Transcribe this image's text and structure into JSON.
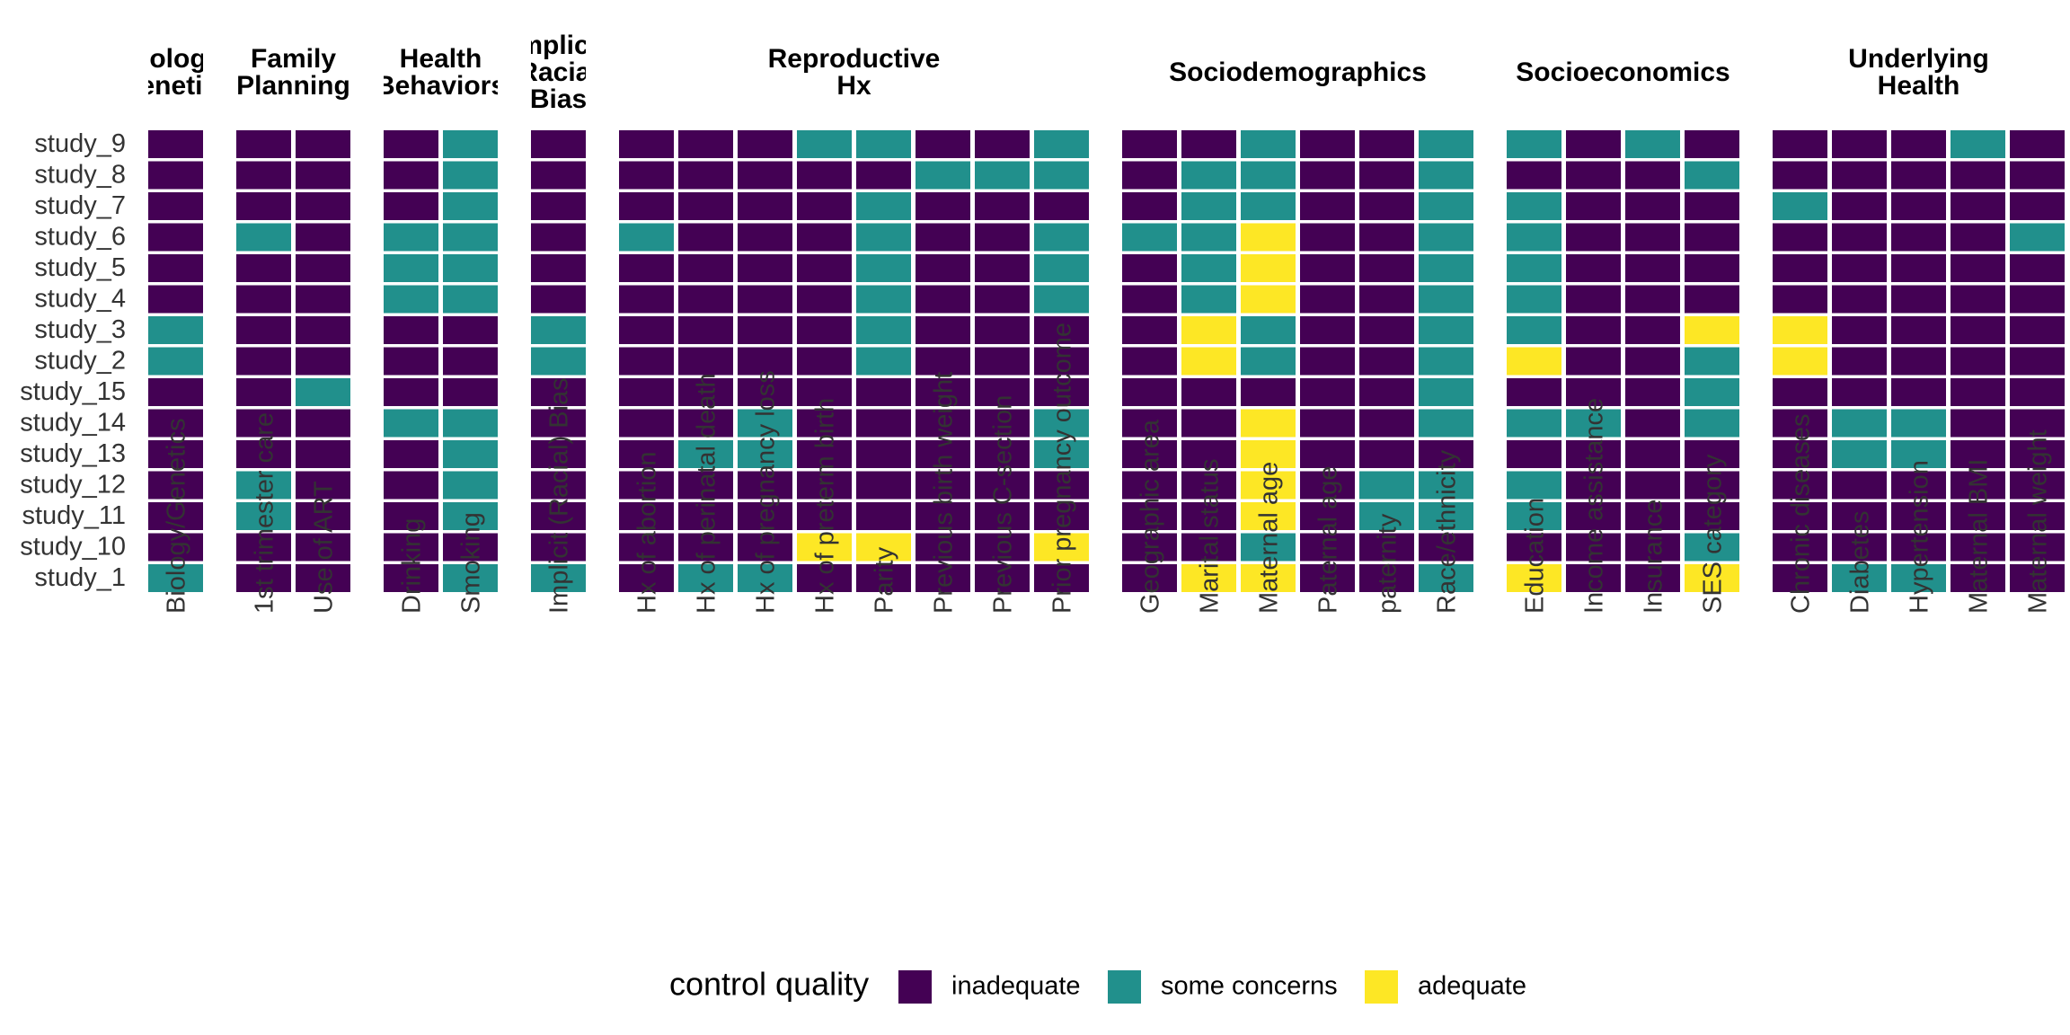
{
  "chart_data": {
    "type": "heatmap",
    "legend": {
      "title": "control quality",
      "position": "bottom",
      "levels": [
        {
          "label": "inadequate",
          "color": "#440154"
        },
        {
          "label": "some concerns",
          "color": "#21908C"
        },
        {
          "label": "adequate",
          "color": "#FDE725"
        }
      ]
    },
    "rows": [
      "study_9",
      "study_8",
      "study_7",
      "study_6",
      "study_5",
      "study_4",
      "study_3",
      "study_2",
      "study_15",
      "study_14",
      "study_13",
      "study_12",
      "study_11",
      "study_10",
      "study_1"
    ],
    "facets": [
      {
        "title": [
          "Biology/",
          "Genetics"
        ],
        "columns": [
          {
            "label": "Biology/Genetics",
            "values": [
              0,
              0,
              0,
              0,
              0,
              0,
              1,
              1,
              0,
              0,
              0,
              0,
              0,
              0,
              1
            ]
          }
        ]
      },
      {
        "title": [
          "Family",
          "Planning"
        ],
        "columns": [
          {
            "label": "1st trimester care",
            "values": [
              0,
              0,
              0,
              1,
              0,
              0,
              0,
              0,
              0,
              0,
              0,
              1,
              1,
              0,
              0
            ]
          },
          {
            "label": "Use of ART",
            "values": [
              0,
              0,
              0,
              0,
              0,
              0,
              0,
              0,
              1,
              0,
              0,
              0,
              0,
              0,
              0
            ]
          }
        ]
      },
      {
        "title": [
          "Health",
          "Behaviors"
        ],
        "columns": [
          {
            "label": "Drinking",
            "values": [
              0,
              0,
              0,
              1,
              1,
              1,
              0,
              0,
              0,
              1,
              0,
              0,
              0,
              0,
              0
            ]
          },
          {
            "label": "Smoking",
            "values": [
              1,
              1,
              1,
              1,
              1,
              1,
              0,
              0,
              0,
              1,
              1,
              1,
              1,
              0,
              1
            ]
          }
        ]
      },
      {
        "title": [
          "Implicit",
          "(Racial)",
          "Bias"
        ],
        "columns": [
          {
            "label": "Implicit (Racial) Bias",
            "values": [
              0,
              0,
              0,
              0,
              0,
              0,
              1,
              1,
              0,
              0,
              0,
              0,
              0,
              0,
              1
            ]
          }
        ]
      },
      {
        "title": [
          "Reproductive",
          "Hx"
        ],
        "columns": [
          {
            "label": "Hx of abortion",
            "values": [
              0,
              0,
              0,
              1,
              0,
              0,
              0,
              0,
              0,
              0,
              0,
              0,
              0,
              0,
              0
            ]
          },
          {
            "label": "Hx of perinatal death",
            "values": [
              0,
              0,
              0,
              0,
              0,
              0,
              0,
              0,
              0,
              0,
              1,
              0,
              0,
              0,
              1
            ]
          },
          {
            "label": "Hx of pregnancy loss",
            "values": [
              0,
              0,
              0,
              0,
              0,
              0,
              0,
              0,
              0,
              1,
              1,
              0,
              0,
              0,
              1
            ]
          },
          {
            "label": "Hx of preterm birth",
            "values": [
              1,
              0,
              0,
              0,
              0,
              0,
              0,
              0,
              0,
              0,
              0,
              0,
              0,
              2,
              0
            ]
          },
          {
            "label": "Parity",
            "values": [
              1,
              0,
              1,
              1,
              1,
              1,
              1,
              1,
              0,
              0,
              0,
              0,
              0,
              2,
              0
            ]
          },
          {
            "label": "Previous birth weight",
            "values": [
              0,
              1,
              0,
              0,
              0,
              0,
              0,
              0,
              0,
              0,
              0,
              0,
              0,
              0,
              0
            ]
          },
          {
            "label": "Previous C-section",
            "values": [
              0,
              1,
              0,
              0,
              0,
              0,
              0,
              0,
              0,
              0,
              0,
              0,
              0,
              0,
              0
            ]
          },
          {
            "label": "Prior pregnancy outcome",
            "values": [
              1,
              1,
              0,
              1,
              1,
              1,
              0,
              0,
              0,
              1,
              1,
              0,
              0,
              2,
              0
            ]
          }
        ]
      },
      {
        "title": [
          "Sociodemographics"
        ],
        "columns": [
          {
            "label": "Geographic area",
            "values": [
              0,
              0,
              0,
              1,
              0,
              0,
              0,
              0,
              0,
              0,
              0,
              0,
              0,
              0,
              0
            ]
          },
          {
            "label": "Marital status",
            "values": [
              0,
              1,
              1,
              1,
              1,
              1,
              2,
              2,
              0,
              0,
              0,
              0,
              0,
              0,
              2
            ]
          },
          {
            "label": "Maternal age",
            "values": [
              1,
              1,
              1,
              2,
              2,
              2,
              1,
              1,
              0,
              2,
              2,
              2,
              2,
              1,
              2
            ]
          },
          {
            "label": "Paternal age",
            "values": [
              0,
              0,
              0,
              0,
              0,
              0,
              0,
              0,
              0,
              0,
              0,
              0,
              0,
              0,
              0
            ]
          },
          {
            "label": "paternity",
            "values": [
              0,
              0,
              0,
              0,
              0,
              0,
              0,
              0,
              0,
              0,
              0,
              1,
              1,
              0,
              0
            ]
          },
          {
            "label": "Race/ethnicity",
            "values": [
              1,
              1,
              1,
              1,
              1,
              1,
              1,
              1,
              1,
              1,
              0,
              1,
              1,
              0,
              1
            ]
          }
        ]
      },
      {
        "title": [
          "Socioeconomics"
        ],
        "columns": [
          {
            "label": "Education",
            "values": [
              1,
              0,
              1,
              1,
              1,
              1,
              1,
              2,
              0,
              1,
              0,
              1,
              1,
              0,
              2
            ]
          },
          {
            "label": "Income assistance",
            "values": [
              0,
              0,
              0,
              0,
              0,
              0,
              0,
              0,
              0,
              1,
              0,
              0,
              0,
              0,
              0
            ]
          },
          {
            "label": "Insurance",
            "values": [
              1,
              0,
              0,
              0,
              0,
              0,
              0,
              0,
              0,
              0,
              0,
              0,
              0,
              0,
              0
            ]
          },
          {
            "label": "SES category",
            "values": [
              0,
              1,
              0,
              0,
              0,
              0,
              2,
              1,
              1,
              1,
              0,
              0,
              0,
              1,
              2
            ]
          }
        ]
      },
      {
        "title": [
          "Underlying",
          "Health"
        ],
        "columns": [
          {
            "label": "Chronic diseases",
            "values": [
              0,
              0,
              1,
              0,
              0,
              0,
              2,
              2,
              0,
              0,
              0,
              0,
              0,
              0,
              0
            ]
          },
          {
            "label": "Diabetes",
            "values": [
              0,
              0,
              0,
              0,
              0,
              0,
              0,
              0,
              0,
              1,
              1,
              0,
              0,
              0,
              1
            ]
          },
          {
            "label": "Hypertension",
            "values": [
              0,
              0,
              0,
              0,
              0,
              0,
              0,
              0,
              0,
              1,
              1,
              0,
              0,
              0,
              1
            ]
          },
          {
            "label": "Maternal BMI",
            "values": [
              1,
              0,
              0,
              0,
              0,
              0,
              0,
              0,
              0,
              0,
              0,
              0,
              0,
              0,
              0
            ]
          },
          {
            "label": "Maternal weight",
            "values": [
              0,
              0,
              0,
              1,
              0,
              0,
              0,
              0,
              0,
              0,
              0,
              0,
              0,
              0,
              0
            ]
          }
        ]
      }
    ]
  }
}
